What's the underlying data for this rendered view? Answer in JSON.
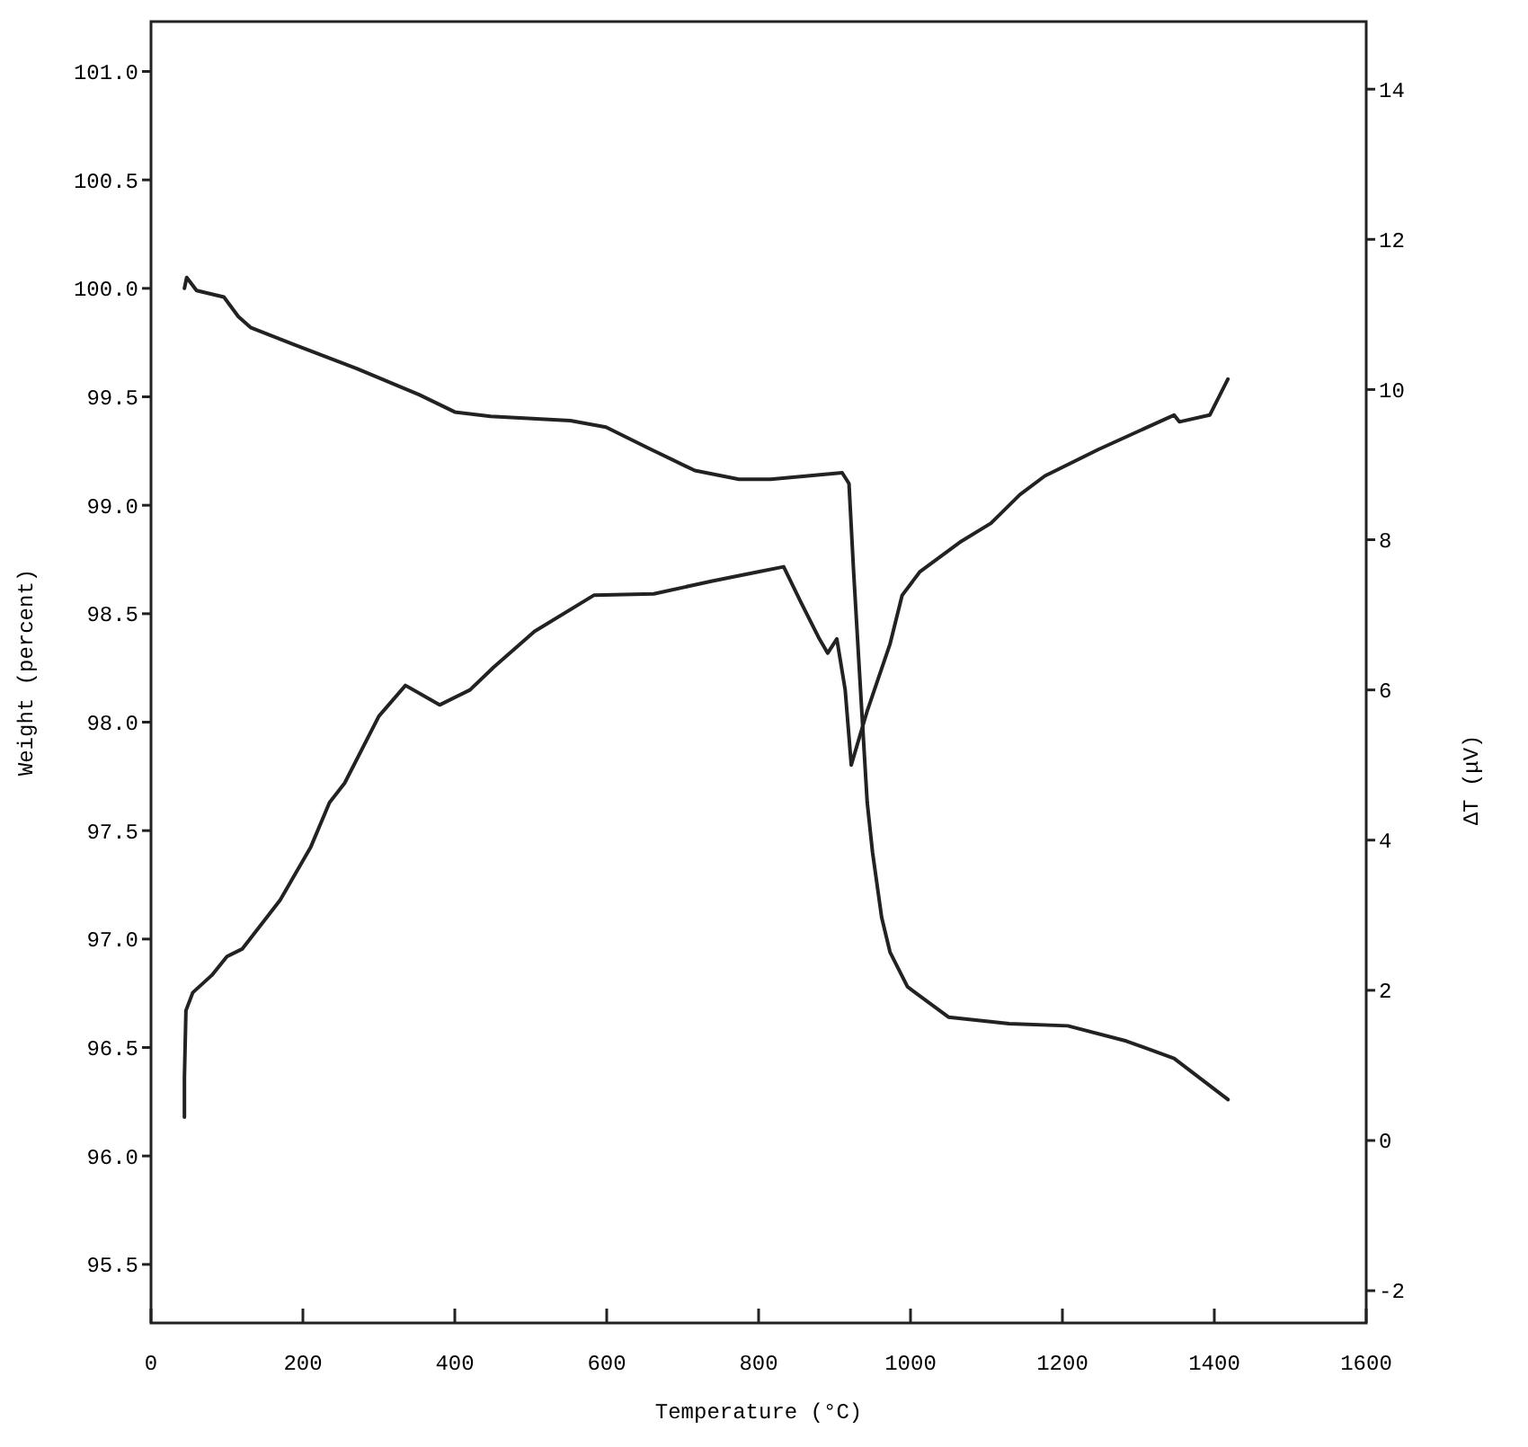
{
  "chart_data": {
    "type": "line",
    "xlabel": "Temperature (°C)",
    "ylabel": "Weight (percent)",
    "y2label": "ΔT (μV)",
    "xlim": [
      0,
      1600
    ],
    "xticks": [
      0,
      200,
      400,
      600,
      800,
      1000,
      1200,
      1400,
      1600
    ],
    "ylim": [
      95.23,
      101.23
    ],
    "yticks": [
      {
        "value": 95.5,
        "label": "95.5"
      },
      {
        "value": 96,
        "label": "96.0"
      },
      {
        "value": 96.5,
        "label": "96.5"
      },
      {
        "value": 97,
        "label": "97.0"
      },
      {
        "value": 97.5,
        "label": "97.5"
      },
      {
        "value": 98,
        "label": "98.0"
      },
      {
        "value": 98.5,
        "label": "98.5"
      },
      {
        "value": 99,
        "label": "99.0"
      },
      {
        "value": 99.5,
        "label": "99.5"
      },
      {
        "value": 100,
        "label": "100.0"
      },
      {
        "value": 100.5,
        "label": "100.5"
      },
      {
        "value": 101,
        "label": "101.0"
      }
    ],
    "y2lim": [
      -2.43,
      14.9
    ],
    "y2ticks": [
      -2,
      0,
      2,
      4,
      6,
      8,
      10,
      12,
      14
    ],
    "grid": false,
    "marker": "none",
    "line_style": "solid",
    "series": [
      {
        "color": "#222222",
        "x": [
          44,
          47,
          60,
          96,
          115,
          131,
          189,
          271,
          353,
          400,
          447,
          552,
          599,
          657,
          716,
          774,
          816,
          910,
          919,
          925,
          935,
          943,
          950,
          962,
          973,
          996,
          1050,
          1130,
          1207,
          1284,
          1347,
          1418
        ],
        "values": [
          100.0,
          100.05,
          99.99,
          99.96,
          99.87,
          99.82,
          99.74,
          99.63,
          99.51,
          99.43,
          99.41,
          99.39,
          99.36,
          99.26,
          99.16,
          99.12,
          99.12,
          99.15,
          99.1,
          98.7,
          98.1,
          97.63,
          97.4,
          97.1,
          96.94,
          96.78,
          96.64,
          96.61,
          96.6,
          96.53,
          96.45,
          96.26
        ]
      },
      {
        "color": "#222222",
        "axis": "y2",
        "x": [
          44,
          44,
          46,
          55,
          80,
          100,
          120,
          170,
          210,
          235,
          255,
          300,
          335,
          380,
          420,
          451,
          505,
          583,
          662,
          739,
          798,
          833,
          856,
          880,
          891,
          903,
          914,
          922,
          943,
          973,
          989,
          1012,
          1067,
          1106,
          1144,
          1177,
          1247,
          1347,
          1354,
          1394,
          1418
        ],
        "values": [
          0.31,
          0.84,
          1.73,
          1.97,
          2.2,
          2.45,
          2.55,
          3.2,
          3.9,
          4.5,
          4.76,
          5.65,
          6.06,
          5.8,
          6.0,
          6.3,
          6.78,
          7.26,
          7.28,
          7.45,
          7.57,
          7.64,
          7.16,
          6.68,
          6.49,
          6.68,
          6.0,
          5.0,
          5.72,
          6.61,
          7.26,
          7.57,
          7.98,
          8.22,
          8.6,
          8.85,
          9.2,
          9.66,
          9.57,
          9.66,
          10.14
        ]
      }
    ]
  }
}
